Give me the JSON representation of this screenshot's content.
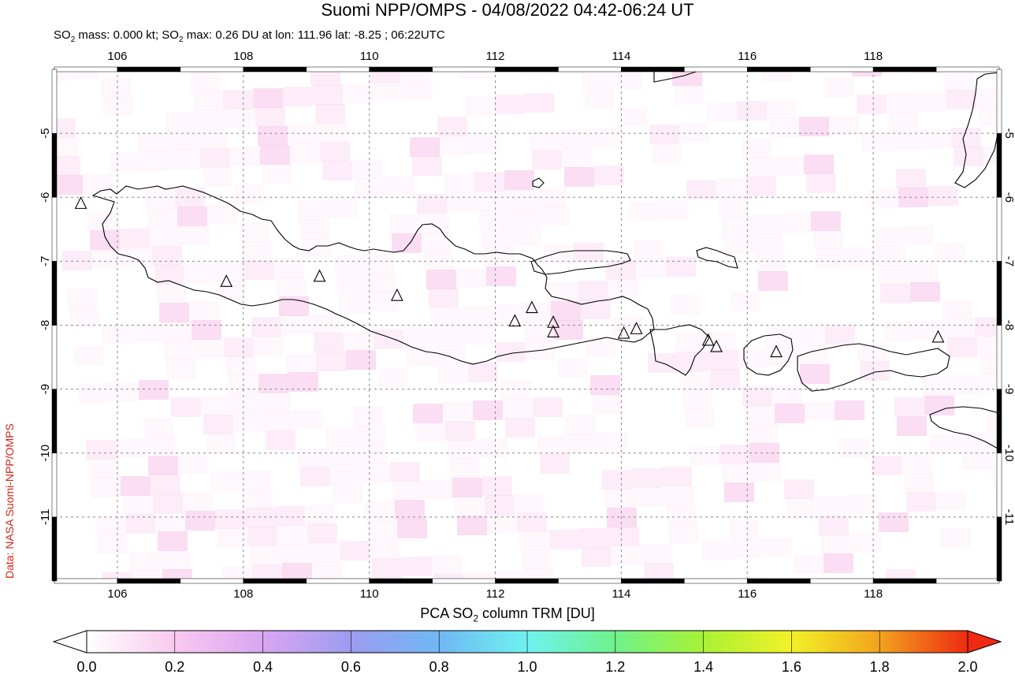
{
  "title": "Suomi NPP/OMPS - 04/08/2022 04:42-06:24 UT",
  "subtitle": {
    "prefix": "SO",
    "sub1": "2",
    "mass": " mass: 0.000 kt; SO",
    "sub2": "2",
    "rest": " max: 0.26 DU at lon: 111.96 lat: -8.25 ; 06:22UTC"
  },
  "credit": "Data: NASA Suomi-NPP/OMPS",
  "map": {
    "lon_range": [
      105.0,
      120.0
    ],
    "lat_range": [
      -12.0,
      -4.0
    ],
    "lon_ticks": [
      "106",
      "108",
      "110",
      "112",
      "114",
      "116",
      "118"
    ],
    "lat_ticks": [
      "-5",
      "-6",
      "-7",
      "-8",
      "-9",
      "-10",
      "-11"
    ],
    "grid": "dashed",
    "volcano_marker": "triangle-icon",
    "volcanoes": [
      {
        "lon": 105.42,
        "lat": -6.1
      },
      {
        "lon": 107.73,
        "lat": -7.32
      },
      {
        "lon": 109.21,
        "lat": -7.24
      },
      {
        "lon": 110.44,
        "lat": -7.54
      },
      {
        "lon": 112.31,
        "lat": -7.94
      },
      {
        "lon": 112.58,
        "lat": -7.73
      },
      {
        "lon": 112.92,
        "lat": -7.96
      },
      {
        "lon": 112.92,
        "lat": -8.11
      },
      {
        "lon": 114.04,
        "lat": -8.13
      },
      {
        "lon": 114.24,
        "lat": -8.06
      },
      {
        "lon": 115.38,
        "lat": -8.24
      },
      {
        "lon": 115.51,
        "lat": -8.34
      },
      {
        "lon": 116.46,
        "lat": -8.42
      },
      {
        "lon": 119.03,
        "lat": -8.19
      }
    ],
    "max_so2_du": 0.26,
    "colors": {
      "land_outline": "#000000",
      "frame": "#000000",
      "grid": "#888888",
      "pixel_tint": "#f7c3ea"
    }
  },
  "colorbar": {
    "label_prefix": "PCA SO",
    "label_sub": "2",
    "label_rest": " column TRM [DU]",
    "ticks": [
      "0.0",
      "0.2",
      "0.4",
      "0.6",
      "0.8",
      "1.0",
      "1.2",
      "1.4",
      "1.6",
      "1.8",
      "2.0"
    ],
    "range": [
      0.0,
      2.0
    ],
    "colors": [
      "#ffffff",
      "#f9c9ef",
      "#d9a6f2",
      "#9c9cf0",
      "#6fb8f4",
      "#6ff2f0",
      "#6ff28a",
      "#a8f236",
      "#f2f226",
      "#f2a31e",
      "#ee2a12"
    ]
  }
}
